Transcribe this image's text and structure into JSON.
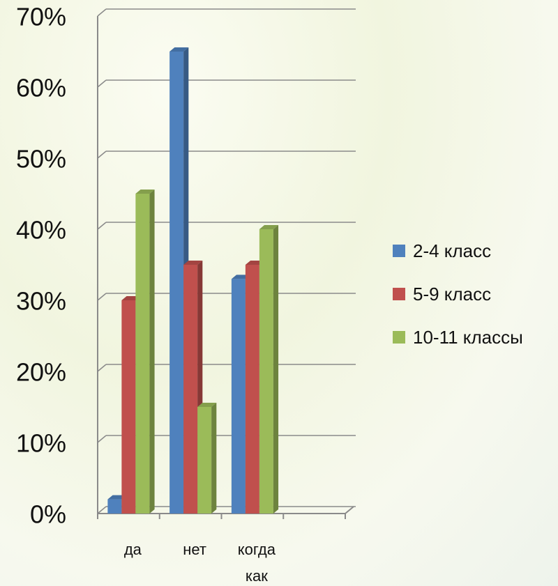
{
  "chart_data": {
    "type": "bar3d",
    "categories": [
      "да",
      "нет",
      "когда как",
      null
    ],
    "series": [
      {
        "name": "2-4 класс",
        "color": "#4f81bd",
        "values": [
          2,
          65,
          33,
          null
        ]
      },
      {
        "name": "5-9 класс",
        "color": "#c0504d",
        "values": [
          30,
          35,
          35,
          null
        ]
      },
      {
        "name": "10-11 классы",
        "color": "#9bbb59",
        "values": [
          45,
          15,
          40,
          null
        ]
      }
    ],
    "ylim": [
      0,
      70
    ],
    "yticks": [
      {
        "value": 0,
        "label": "0%"
      },
      {
        "value": 10,
        "label": "10%"
      },
      {
        "value": 20,
        "label": "20%"
      },
      {
        "value": 30,
        "label": "30%"
      },
      {
        "value": 40,
        "label": "40%"
      },
      {
        "value": 50,
        "label": "50%"
      },
      {
        "value": 60,
        "label": "60%"
      },
      {
        "value": 70,
        "label": "70%"
      }
    ],
    "grid": true,
    "legend": "right"
  }
}
